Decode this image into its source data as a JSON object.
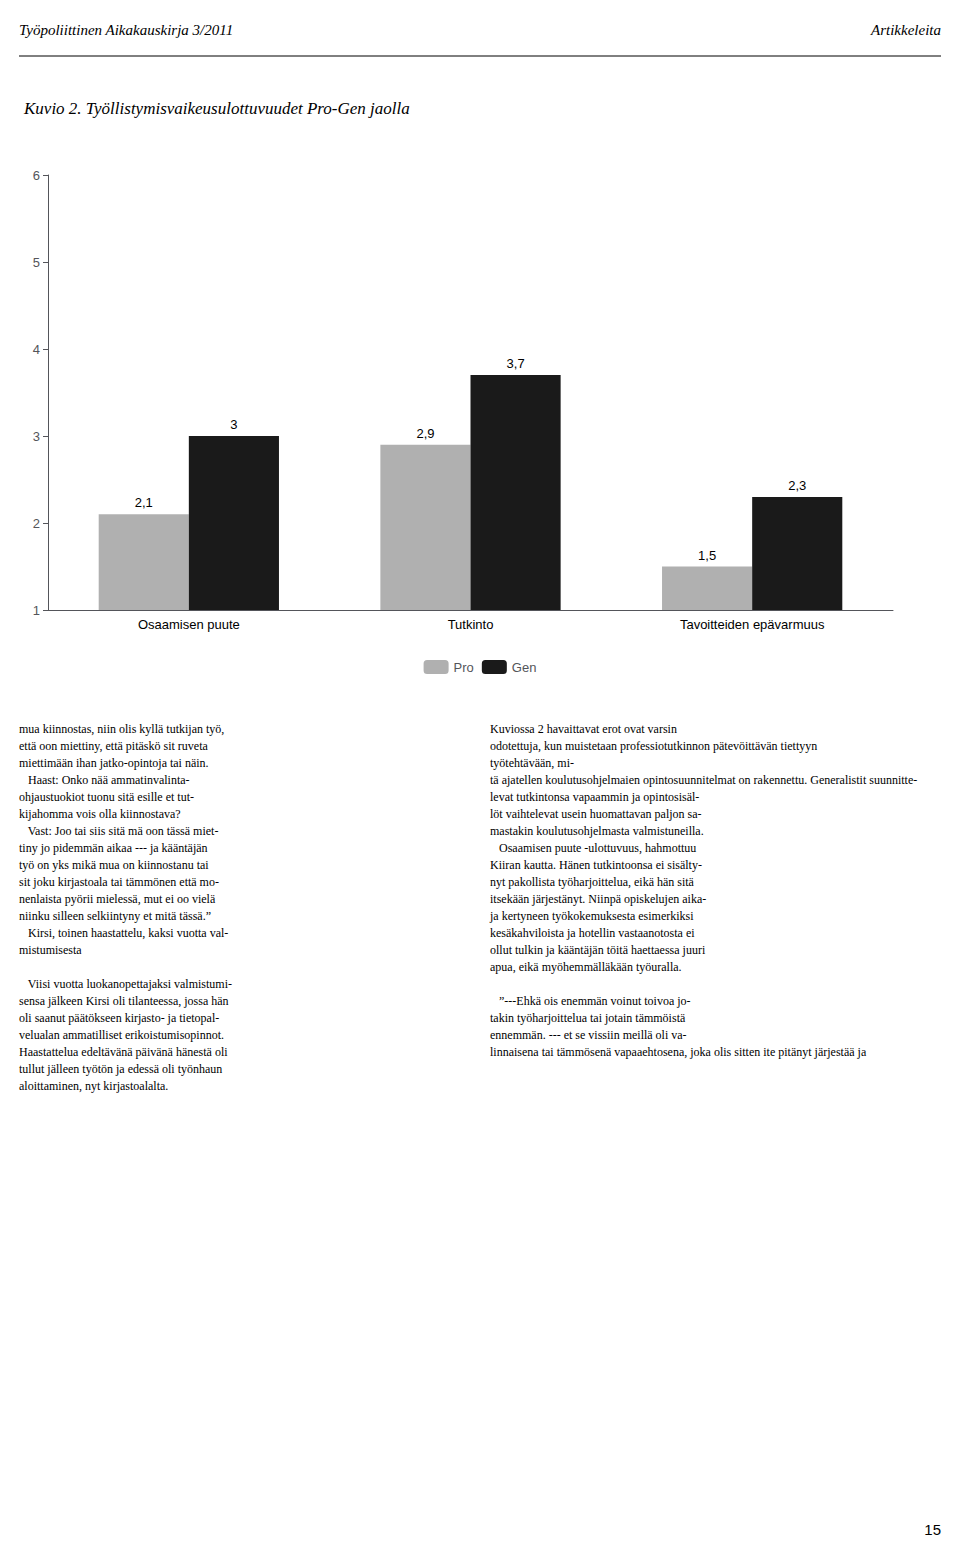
{
  "chart_data": {
    "type": "bar",
    "title": "Kuvio 2. Työllistymisvaikeusulottuvuudet Pro-Gen jaolla",
    "categories": [
      "Osaamisen puute",
      "Tutkinto",
      "Tavoitteiden epävarmuus"
    ],
    "series": [
      {
        "name": "Pro",
        "color": "#b0b0b0",
        "values": [
          2.1,
          2.9,
          1.5
        ],
        "value_labels": [
          "2,1",
          "2,9",
          "1,5"
        ]
      },
      {
        "name": "Gen",
        "color": "#1a1a1a",
        "values": [
          3.0,
          3.7,
          2.3
        ],
        "value_labels": [
          "3",
          "3,7",
          "2,3"
        ]
      }
    ],
    "ylim": [
      1,
      6
    ],
    "yticks": [
      1,
      2,
      3,
      4,
      5,
      6
    ],
    "grid": false,
    "legend": "bottom",
    "data_labels": true,
    "annotations": [
      "Työpoliittinen Aikakauskirja 3/2011",
      "Artikkeleita",
      "mua kiinnostas, niin olis kyllä tutkijan työ,\nettä oon miettiny, että pitäskö sit ruveta\nmiettimään ihan jatko-opintoja tai näin.\n   Haast: Onko nää ammatinvalinta-\nohjaustuokiot tuonu sitä esille et tut-\nkijahomma vois olla kiinnostava?\n   Vast: Joo tai siis sitä mä oon tässä miet-\ntiny jo pidemmän aikaa --- ja kääntäjän\ntyö on yks mikä mua on kiinnostanu tai\nsit joku kirjastoala tai tämmönen että mo-\nnenlaista pyörii mielessä, mut ei oo vielä\nniinku silleen selkiintyny et mitä tässä.”\n   Kirsi, toinen haastattelu, kaksi vuotta val-\nmistumisesta\n\n   Viisi vuotta luokanopettajaksi valmistumi-\nsensa jälkeen Kirsi oli tilanteessa, jossa hän\noli saanut päätökseen kirjasto- ja tietopal-\nvelualan ammatilliset erikoistumisopinnot.\nHaastattelua edeltävänä päivänä hänestä oli\ntullut jälleen työtön ja edessä oli työnhaun\naloittaminen, nyt kirjastoalalta.",
      "Kuviossa 2 havaittavat erot ovat varsin\nodotettuja, kun muistetaan professiotutkinnon pätevöittävän tiettyyn työtehtävään, mi-\ntä ajatellen koulutusohjelmaien opintosuunnitelmat on rakennettu. Generalistit suunnitte-\nlevat tutkintonsa vapaammin ja opintosisäl-\nlöt vaihtelevat usein huomattavan paljon sa-\nmastakin koulutusohjelmasta valmistuneilla.\n   Osaamisen puute -ulottuvuus, hahmottuu\nKiiran kautta. Hänen tutkintoonsa ei sisälty-\nnyt pakollista työharjoittelua, eikä hän sitä\nitsekään järjestänyt. Niinpä opiskelujen aika-\nja kertyneen työkokemuksesta esimerkiksi\nkesäkahviloista ja hotellin vastaanotosta ei\nollut tulkin ja kääntäjän töitä haettaessa juuri\napua, eikä myöhemmälläkään työuralla.\n\n   ”---Ehkä ois enemmän voinut toivoa jo-\ntakin työharjoittelua tai jotain tämmöistä\nennemmän. --- et se vissiin meillä oli va-\nlinnaisena tai tämmösenä vapaaehtosena, joka olis sitten ite pitänyt järjestää ja",
      "15"
    ]
  }
}
